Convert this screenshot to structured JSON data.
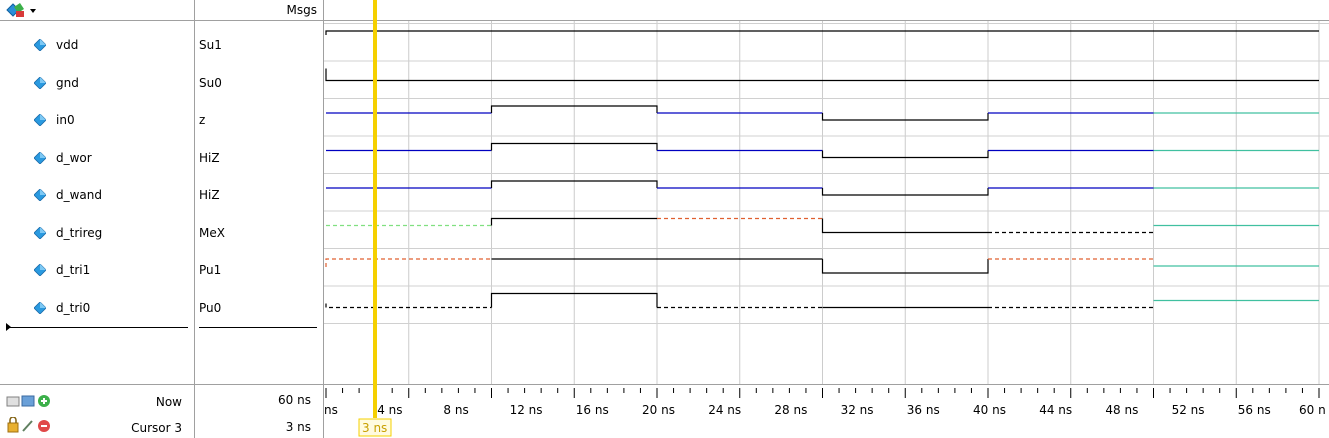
{
  "header": {
    "msgs_label": "Msgs"
  },
  "signals": [
    {
      "name": "vdd",
      "value": "Su1"
    },
    {
      "name": "gnd",
      "value": "Su0"
    },
    {
      "name": "in0",
      "value": "z"
    },
    {
      "name": "d_wor",
      "value": "HiZ"
    },
    {
      "name": "d_wand",
      "value": "HiZ"
    },
    {
      "name": "d_trireg",
      "value": "MeX"
    },
    {
      "name": "d_tri1",
      "value": "Pu1"
    },
    {
      "name": "d_tri0",
      "value": "Pu0"
    }
  ],
  "footer": {
    "now_label": "Now",
    "now_value": "60 ns",
    "cursor_label": "Cursor 3",
    "cursor_value": "3 ns",
    "cursor_time_label": "3 ns"
  },
  "timeline": {
    "ticks": [
      "ns",
      "4 ns",
      "8 ns",
      "12 ns",
      "16 ns",
      "20 ns",
      "24 ns",
      "28 ns",
      "32 ns",
      "36 ns",
      "40 ns",
      "44 ns",
      "48 ns",
      "52 ns",
      "56 ns",
      "60 n"
    ]
  },
  "colors": {
    "cursor": "#f5d000",
    "blue_wave": "#0000c0",
    "black_wave": "#000000",
    "green_wave": "#40c0a0",
    "grid": "#c8c8c8"
  }
}
